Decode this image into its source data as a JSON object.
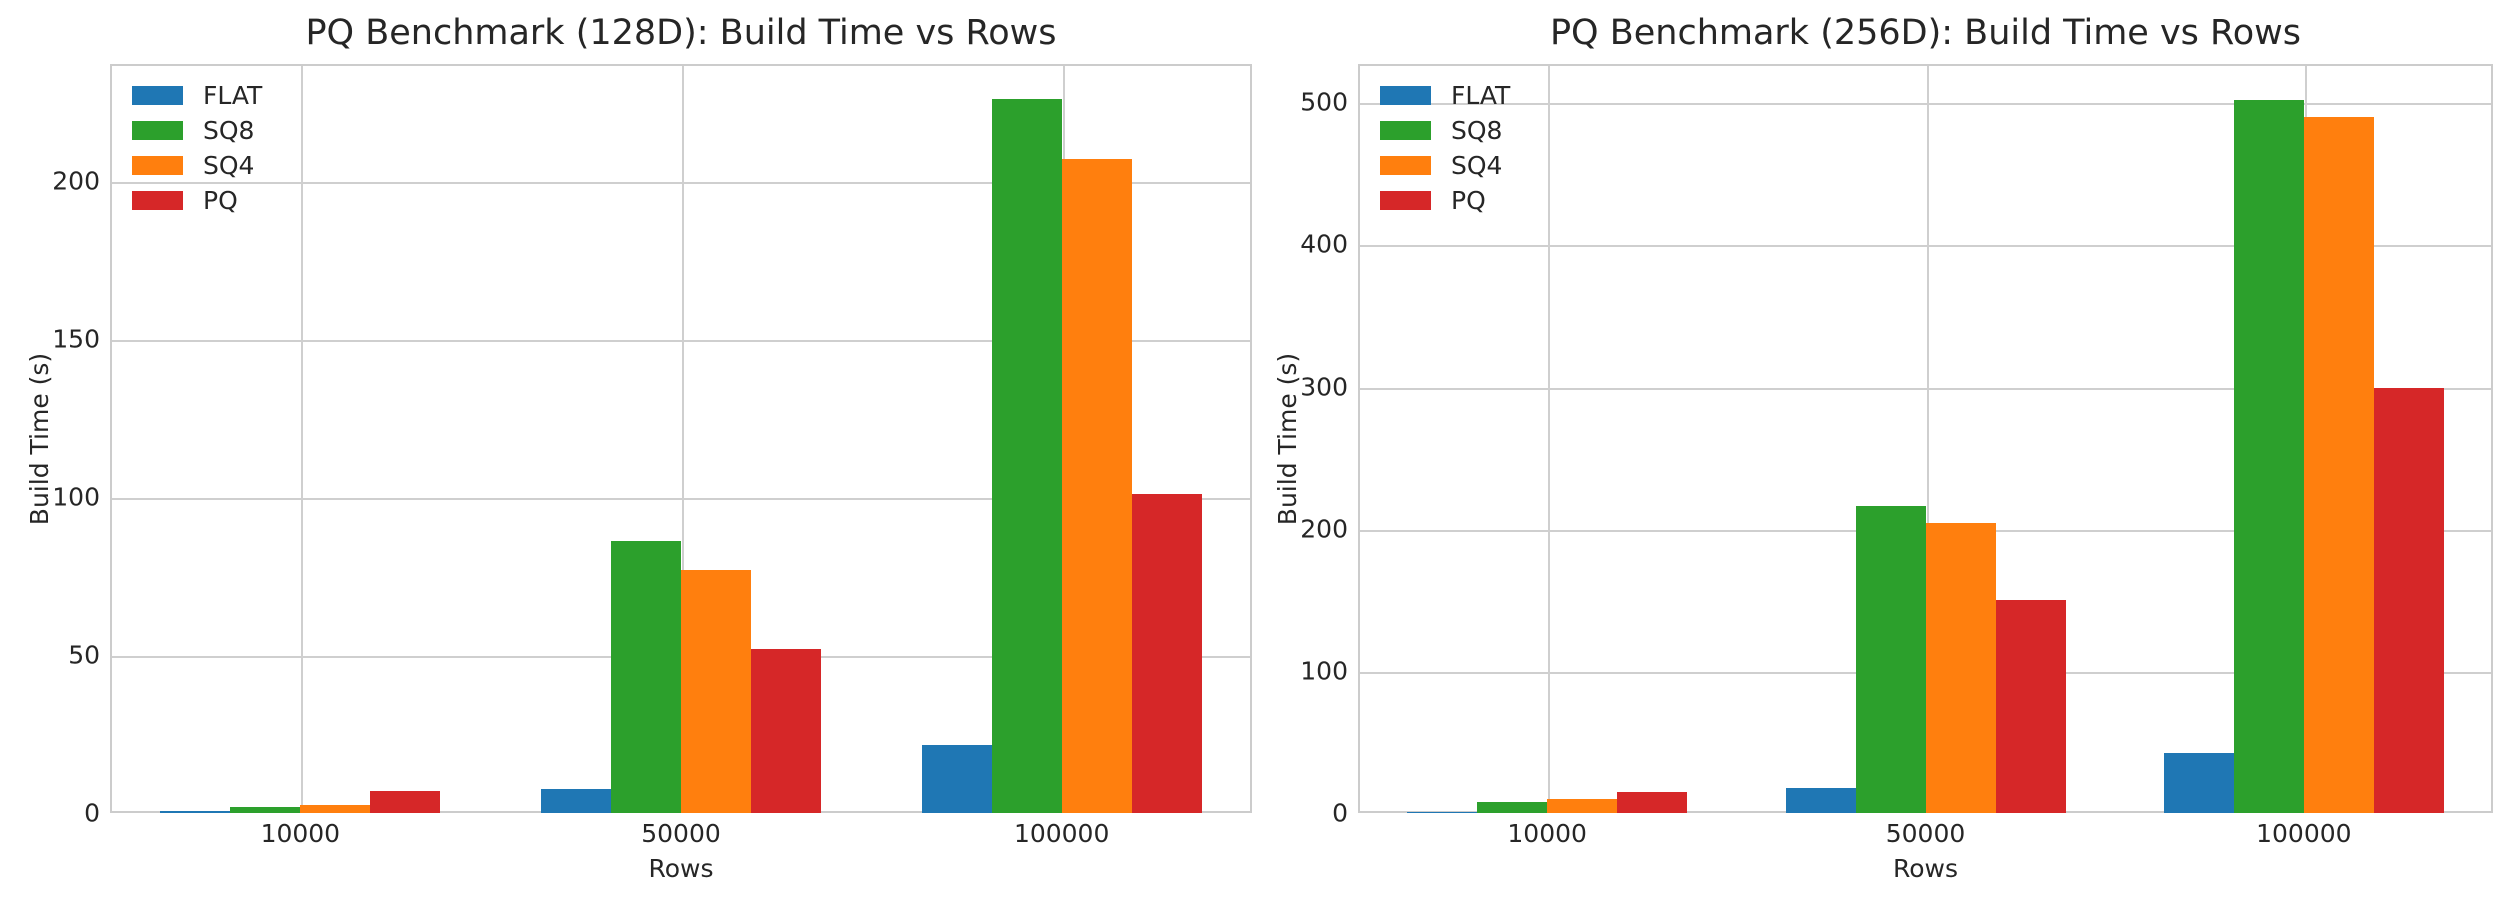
{
  "figure": {
    "background": "#ffffff",
    "text_color": "#262626",
    "grid_color": "#cfcfcf",
    "spine_color": "#cccccc"
  },
  "chart_data": [
    {
      "type": "bar",
      "title": "PQ Benchmark (128D): Build Time vs Rows",
      "xlabel": "Rows",
      "ylabel": "Build Time (s)",
      "categories": [
        "10000",
        "50000",
        "100000"
      ],
      "series": [
        {
          "name": "FLAT",
          "color": "#1f77b4",
          "values": [
            0.6,
            7.7,
            21.5
          ]
        },
        {
          "name": "SQ8",
          "color": "#2ca02c",
          "values": [
            1.9,
            86,
            226
          ]
        },
        {
          "name": "SQ4",
          "color": "#ff7f0e",
          "values": [
            2.6,
            77,
            207
          ]
        },
        {
          "name": "PQ",
          "color": "#d62728",
          "values": [
            7.0,
            52,
            101
          ]
        }
      ],
      "yticks": [
        0,
        50,
        100,
        150,
        200
      ],
      "ylim": [
        0,
        237
      ],
      "grid": true,
      "legend_position": "upper left"
    },
    {
      "type": "bar",
      "title": "PQ Benchmark (256D): Build Time vs Rows",
      "xlabel": "Rows",
      "ylabel": "Build Time (s)",
      "categories": [
        "10000",
        "50000",
        "100000"
      ],
      "series": [
        {
          "name": "FLAT",
          "color": "#1f77b4",
          "values": [
            0.8,
            17.5,
            42
          ]
        },
        {
          "name": "SQ8",
          "color": "#2ca02c",
          "values": [
            7.5,
            216,
            502
          ]
        },
        {
          "name": "SQ4",
          "color": "#ff7f0e",
          "values": [
            10,
            204,
            490
          ]
        },
        {
          "name": "PQ",
          "color": "#d62728",
          "values": [
            15,
            150,
            299
          ]
        }
      ],
      "yticks": [
        0,
        100,
        200,
        300,
        400,
        500
      ],
      "ylim": [
        0,
        527
      ],
      "grid": true,
      "legend_position": "upper left"
    }
  ]
}
